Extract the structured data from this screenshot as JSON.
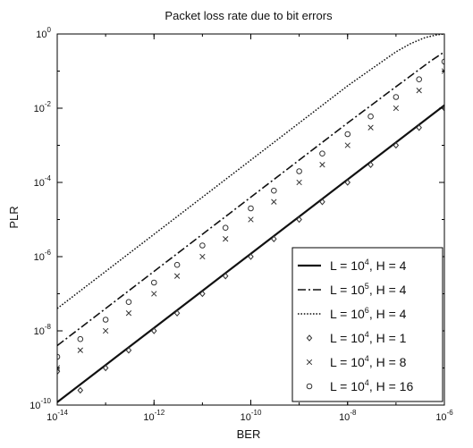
{
  "chart_data": {
    "type": "line",
    "title": "Packet loss rate due to bit errors",
    "xlabel": "BER",
    "ylabel": "PLR",
    "xscale": "log",
    "yscale": "log",
    "xlim": [
      1e-14,
      1e-06
    ],
    "ylim": [
      1e-10,
      1
    ],
    "grid": false,
    "legend_position": "bottom-right",
    "x_ticks": [
      {
        "value": 1e-14,
        "base": "10",
        "exp": "-14"
      },
      {
        "value": 1e-12,
        "base": "10",
        "exp": "-12"
      },
      {
        "value": 1e-10,
        "base": "10",
        "exp": "-10"
      },
      {
        "value": 1e-08,
        "base": "10",
        "exp": "-8"
      },
      {
        "value": 1e-06,
        "base": "10",
        "exp": "-6"
      }
    ],
    "y_ticks": [
      {
        "value": 1e-10,
        "base": "10",
        "exp": "-10"
      },
      {
        "value": 1e-08,
        "base": "10",
        "exp": "-8"
      },
      {
        "value": 1e-06,
        "base": "10",
        "exp": "-6"
      },
      {
        "value": 0.0001,
        "base": "10",
        "exp": "-4"
      },
      {
        "value": 0.01,
        "base": "10",
        "exp": "-2"
      },
      {
        "value": 1,
        "base": "10",
        "exp": "0"
      }
    ],
    "series": [
      {
        "name": "L = 10^4, H = 4",
        "legend": {
          "pre": "L = 10",
          "sup": "4",
          "post": ", H = 4"
        },
        "style": "solid",
        "marker": "none",
        "x": [
          1e-14,
          1e-13,
          1e-12,
          1e-11,
          1e-10,
          1e-09,
          1e-08,
          1e-07,
          1e-06
        ],
        "y": [
          1.2e-10,
          1.2e-09,
          1.2e-08,
          1.2e-07,
          1.2e-06,
          1.2e-05,
          0.00012,
          0.0012,
          0.012
        ]
      },
      {
        "name": "L = 10^5, H = 4",
        "legend": {
          "pre": "L = 10",
          "sup": "5",
          "post": ", H = 4"
        },
        "style": "dashdot",
        "marker": "none",
        "x": [
          1e-14,
          1e-13,
          1e-12,
          1e-11,
          1e-10,
          1e-09,
          1e-08,
          1e-07,
          5e-07,
          1e-06
        ],
        "y": [
          4e-09,
          4e-08,
          4e-07,
          4e-06,
          4e-05,
          0.0004,
          0.004,
          0.038,
          0.18,
          0.33
        ]
      },
      {
        "name": "L = 10^6, H = 4",
        "legend": {
          "pre": "L = 10",
          "sup": "6",
          "post": ", H = 4"
        },
        "style": "dotted",
        "marker": "none",
        "x": [
          1e-14,
          1e-13,
          1e-12,
          1e-11,
          1e-10,
          1e-09,
          1e-08,
          3e-08,
          1e-07,
          2e-07,
          4e-07,
          7e-07,
          1e-06
        ],
        "y": [
          4e-08,
          4e-07,
          4e-06,
          4e-05,
          0.0004,
          0.004,
          0.04,
          0.11,
          0.33,
          0.55,
          0.8,
          0.95,
          1.0
        ]
      },
      {
        "name": "L = 10^4, H = 1",
        "legend": {
          "pre": "L = 10",
          "sup": "4",
          "post": ", H = 1"
        },
        "style": "none",
        "marker": "diamond",
        "x": [
          1e-14,
          3e-14,
          1e-13,
          3e-13,
          1e-12,
          3e-12,
          1e-11,
          3e-11,
          1e-10,
          3e-10,
          1e-09,
          3e-09,
          1e-08,
          3e-08,
          1e-07,
          3e-07,
          1e-06
        ],
        "y": [
          8e-10,
          2.5e-10,
          1e-09,
          3e-09,
          1e-08,
          3e-08,
          1e-07,
          3e-07,
          1e-06,
          3e-06,
          1e-05,
          3e-05,
          0.0001,
          0.0003,
          0.001,
          0.003,
          0.01
        ]
      },
      {
        "name": "L = 10^4, H = 8",
        "legend": {
          "pre": "L = 10",
          "sup": "4",
          "post": ", H = 8"
        },
        "style": "none",
        "marker": "x",
        "x": [
          1e-14,
          3e-14,
          1e-13,
          3e-13,
          1e-12,
          3e-12,
          1e-11,
          3e-11,
          1e-10,
          3e-10,
          1e-09,
          3e-09,
          1e-08,
          3e-08,
          1e-07,
          3e-07,
          1e-06
        ],
        "y": [
          1e-09,
          3e-09,
          1e-08,
          3e-08,
          1e-07,
          3e-07,
          1e-06,
          3e-06,
          1e-05,
          3e-05,
          0.0001,
          0.0003,
          0.001,
          0.003,
          0.01,
          0.03,
          0.1
        ]
      },
      {
        "name": "L = 10^4, H = 16",
        "legend": {
          "pre": "L = 10",
          "sup": "4",
          "post": ", H = 16"
        },
        "style": "none",
        "marker": "circle",
        "x": [
          1e-14,
          3e-14,
          1e-13,
          3e-13,
          1e-12,
          3e-12,
          1e-11,
          3e-11,
          1e-10,
          3e-10,
          1e-09,
          3e-09,
          1e-08,
          3e-08,
          1e-07,
          3e-07,
          1e-06
        ],
        "y": [
          2e-09,
          6e-09,
          2e-08,
          6e-08,
          2e-07,
          6e-07,
          2e-06,
          6e-06,
          2e-05,
          6e-05,
          0.0002,
          0.0006,
          0.002,
          0.006,
          0.02,
          0.06,
          0.18
        ]
      }
    ]
  }
}
